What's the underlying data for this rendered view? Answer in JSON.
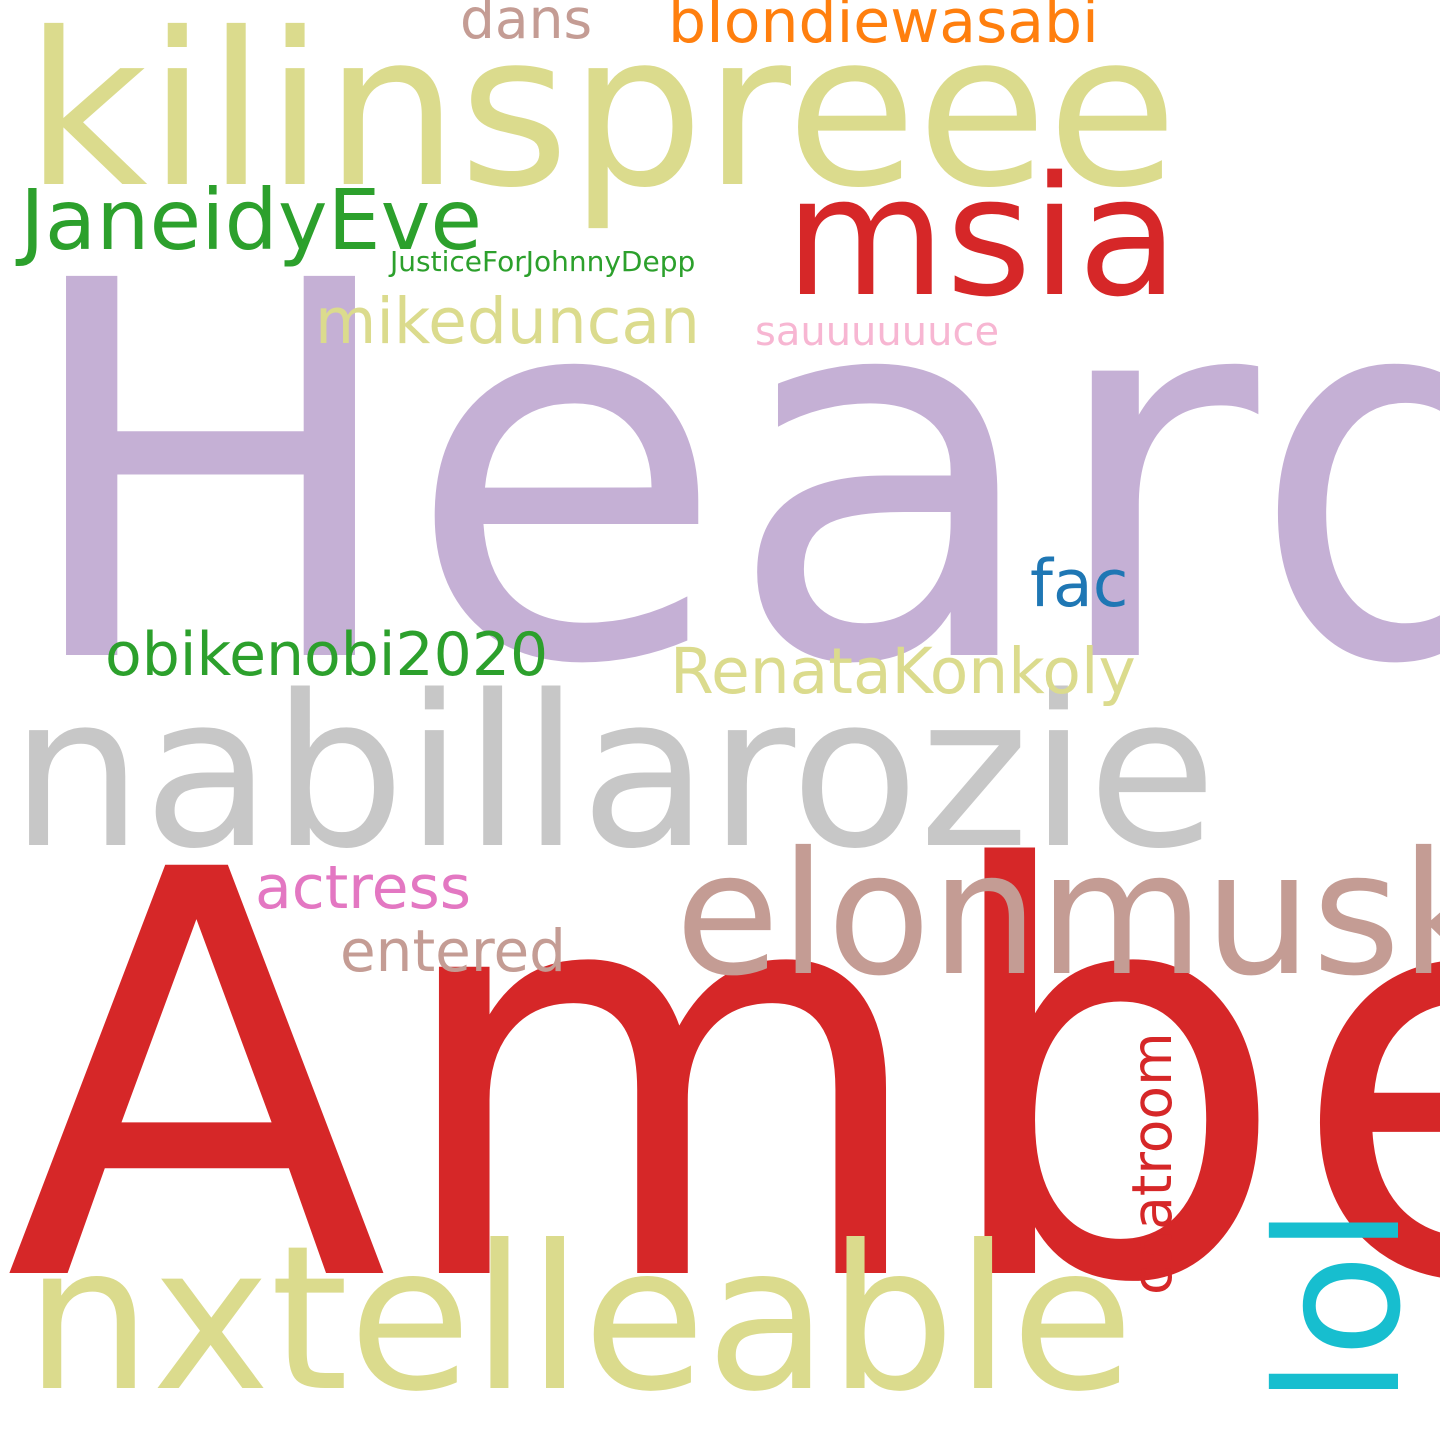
{
  "words": [
    {
      "text": "Heard",
      "color": "#c5b0d5"
    },
    {
      "text": "Amber",
      "color": "#d62728"
    },
    {
      "text": "nabillarozie",
      "color": "#c7c7c7"
    },
    {
      "text": "kilinspreee",
      "color": "#dbdb8d"
    },
    {
      "text": "nxtelleable",
      "color": "#dbdb8d"
    },
    {
      "text": "elonmusk",
      "color": "#c49c94"
    },
    {
      "text": "msia",
      "color": "#d62728"
    },
    {
      "text": "lol",
      "color": "#17becf"
    },
    {
      "text": "JaneidyEve",
      "color": "#2ca02c"
    },
    {
      "text": "mikeduncan",
      "color": "#dbdb8d"
    },
    {
      "text": "RenataKonkoly",
      "color": "#dbdb8d"
    },
    {
      "text": "obikenobi2020",
      "color": "#2ca02c"
    },
    {
      "text": "bIondiewasabi",
      "color": "#ff7f0e"
    },
    {
      "text": "actress",
      "color": "#e377c2"
    },
    {
      "text": "fac",
      "color": "#1f77b4"
    },
    {
      "text": "chatroom",
      "color": "#d62728"
    },
    {
      "text": "entered",
      "color": "#c49c94"
    },
    {
      "text": "dans",
      "color": "#c49c94"
    },
    {
      "text": "sauuuuuuce",
      "color": "#f7b6d2"
    },
    {
      "text": "JusticeForJohnnyDepp",
      "color": "#2ca02c"
    }
  ]
}
